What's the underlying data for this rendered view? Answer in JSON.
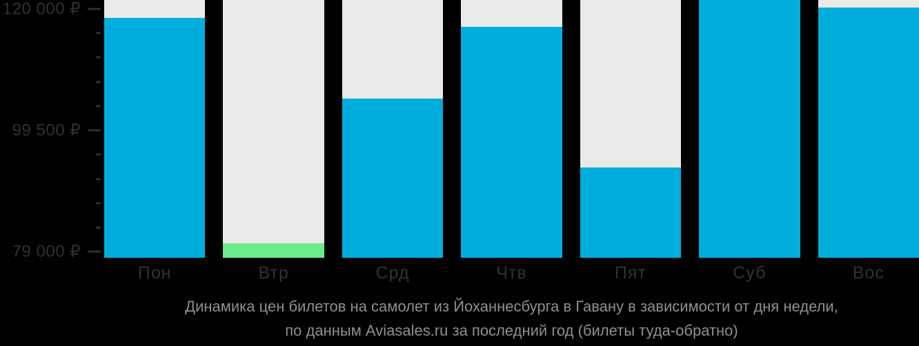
{
  "chart_data": {
    "type": "bar",
    "title": "Динамика цен билетов на самолет из Йоханнесбурга в Гавану в зависимости от дня недели, по данным Aviasales.ru за последний год (билеты туда-обратно)",
    "categories": [
      "Пон",
      "Втр",
      "Срд",
      "Чтв",
      "Пят",
      "Суб",
      "Вос"
    ],
    "values": [
      118500,
      80400,
      104900,
      117000,
      93200,
      122000,
      120200
    ],
    "value_unit": "₽",
    "min_price_day": "Втр",
    "min_price_day_index": 1,
    "ylim": [
      78000,
      121500
    ],
    "yticks_major": [
      {
        "value": 120000,
        "label": "120 000 ₽"
      },
      {
        "value": 99500,
        "label": "99 500 ₽"
      },
      {
        "value": 79000,
        "label": "79 000 ₽"
      }
    ],
    "yticks_minor": [
      115900,
      111800,
      107700,
      103600,
      95400,
      91300,
      87200,
      83100
    ],
    "grid": false,
    "legend": false,
    "note": "Bar for Суб reaches the top of the plot area (value clipped at axis top)."
  },
  "caption": {
    "line1": "Динамика цен билетов на самолет из Йоханнесбурга в Гавану в зависимости от дня недели,",
    "line2": "по данным Aviasales.ru за последний год (билеты туда-обратно)"
  },
  "colors": {
    "background": "#000000",
    "column_background": "#E9E9E9",
    "bar": "#00AEDD",
    "bar_min": "#6DEB8C",
    "axis_text": "#2D3134",
    "x_label_text": "#303335",
    "caption_text": "#8F8F8F"
  }
}
